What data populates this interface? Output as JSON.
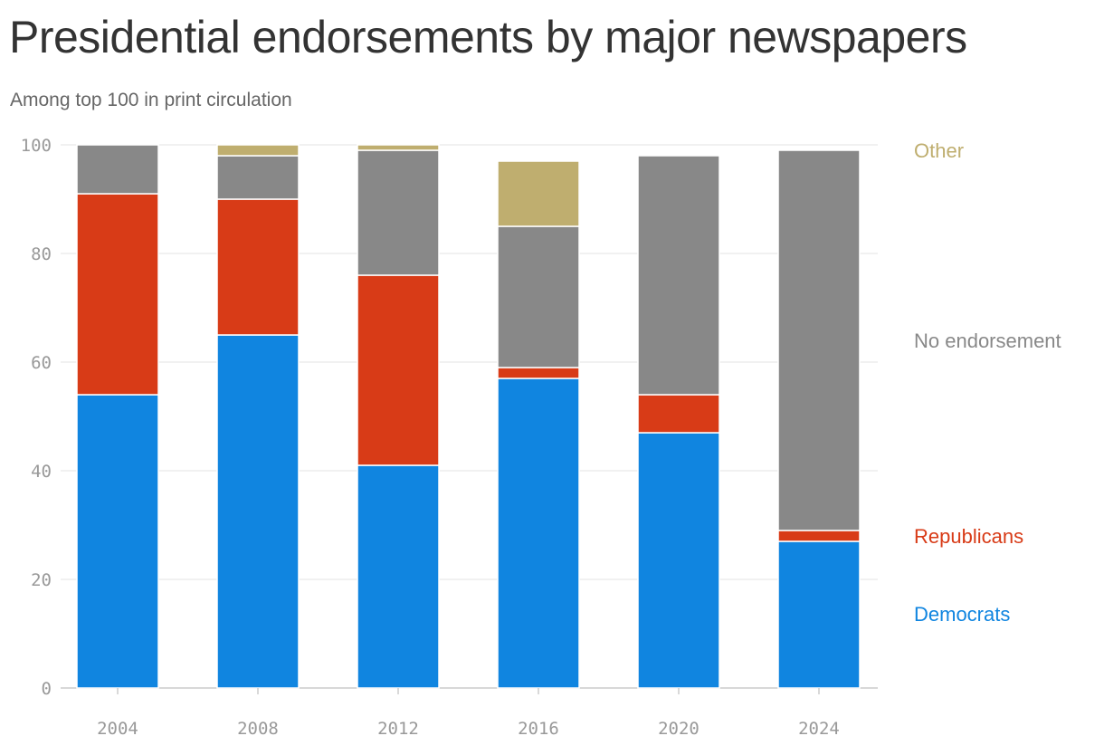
{
  "title": "Presidential endorsements by major newspapers",
  "subtitle": "Among top 100 in print circulation",
  "chart_data": {
    "type": "bar",
    "stacked": true,
    "title": "Presidential endorsements by major newspapers",
    "subtitle": "Among top 100 in print circulation",
    "xlabel": "",
    "ylabel": "",
    "categories": [
      "2004",
      "2008",
      "2012",
      "2016",
      "2020",
      "2024"
    ],
    "ylim": [
      0,
      100
    ],
    "yticks": [
      0,
      20,
      40,
      60,
      80,
      100
    ],
    "grid": true,
    "legend_placement": "right",
    "series": [
      {
        "name": "Democrats",
        "color": "#1085e0",
        "values": [
          54,
          65,
          41,
          57,
          47,
          27
        ]
      },
      {
        "name": "Republicans",
        "color": "#d83b17",
        "values": [
          37,
          25,
          35,
          2,
          7,
          2
        ]
      },
      {
        "name": "No endorsement",
        "color": "#888888",
        "values": [
          9,
          8,
          23,
          26,
          44,
          70
        ]
      },
      {
        "name": "Other",
        "color": "#bfae6f",
        "values": [
          0,
          2,
          1,
          12,
          0,
          0
        ]
      }
    ]
  }
}
